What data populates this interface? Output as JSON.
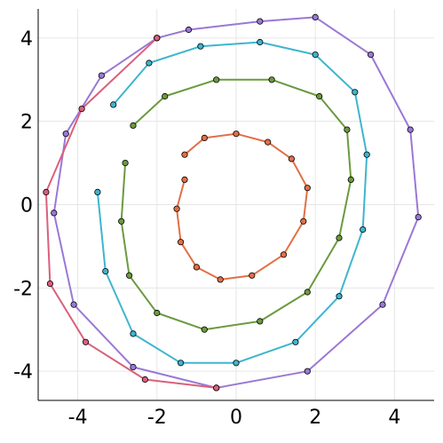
{
  "chart_data": {
    "type": "line",
    "title": "",
    "xlabel": "",
    "ylabel": "",
    "xlim": [
      -5,
      5
    ],
    "ylim": [
      -4.7,
      4.7
    ],
    "x_ticks": [
      "-4",
      "-2",
      "0",
      "2",
      "4"
    ],
    "y_ticks": [
      "-4",
      "-2",
      "0",
      "2",
      "4"
    ],
    "tick_values": [
      -4,
      -2,
      0,
      2,
      4
    ],
    "grid": true,
    "legend": "none",
    "markers": "circle",
    "series": [
      {
        "color": "#e26f46",
        "description": "inner dense ring trajectory",
        "x": [
          -1.3,
          -0.8,
          0.0,
          0.8,
          1.4,
          1.8,
          1.7,
          1.2,
          0.4,
          -0.4,
          -1.0,
          -1.4,
          -1.5,
          -1.3
        ],
        "y": [
          1.2,
          1.6,
          1.7,
          1.5,
          1.1,
          0.4,
          -0.4,
          -1.2,
          -1.7,
          -1.8,
          -1.5,
          -0.9,
          -0.1,
          0.6
        ]
      },
      {
        "color": "#3eb5cf",
        "description": "outer ring trajectory",
        "x": [
          -3.1,
          -2.2,
          -0.9,
          0.6,
          2.0,
          3.0,
          3.3,
          3.2,
          2.6,
          1.5,
          0.0,
          -1.4,
          -2.6,
          -3.3,
          -3.5
        ],
        "y": [
          2.4,
          3.4,
          3.8,
          3.9,
          3.6,
          2.7,
          1.2,
          -0.6,
          -2.2,
          -3.3,
          -3.8,
          -3.8,
          -3.1,
          -1.6,
          0.3
        ]
      },
      {
        "color": "#9a78d6",
        "description": "outermost loop",
        "x": [
          -2.0,
          -3.4,
          -4.3,
          -4.6,
          -4.1,
          -2.6,
          -0.5,
          1.8,
          3.7,
          4.6,
          4.4,
          3.4,
          2.0,
          0.6,
          -1.2,
          -2.0
        ],
        "y": [
          4.0,
          3.1,
          1.7,
          -0.2,
          -2.4,
          -3.9,
          -4.4,
          -4.0,
          -2.4,
          -0.3,
          1.8,
          3.6,
          4.5,
          4.4,
          4.2,
          4.0
        ]
      },
      {
        "color": "#6b9a3f",
        "description": "inner edge of outer ring",
        "x": [
          -2.6,
          -1.8,
          -0.5,
          0.9,
          2.1,
          2.8,
          2.9,
          2.6,
          1.8,
          0.6,
          -0.8,
          -2.0,
          -2.7,
          -2.9,
          -2.8
        ],
        "y": [
          1.9,
          2.6,
          3.0,
          3.0,
          2.6,
          1.8,
          0.6,
          -0.8,
          -2.1,
          -2.8,
          -3.0,
          -2.6,
          -1.7,
          -0.4,
          1.0
        ]
      },
      {
        "color": "#d9607c",
        "description": "starting loop segment",
        "x": [
          -2.0,
          -3.9,
          -4.8,
          -4.7,
          -3.8,
          -2.3,
          -0.5
        ],
        "y": [
          4.0,
          2.3,
          0.3,
          -1.9,
          -3.3,
          -4.2,
          -4.4
        ]
      }
    ]
  }
}
